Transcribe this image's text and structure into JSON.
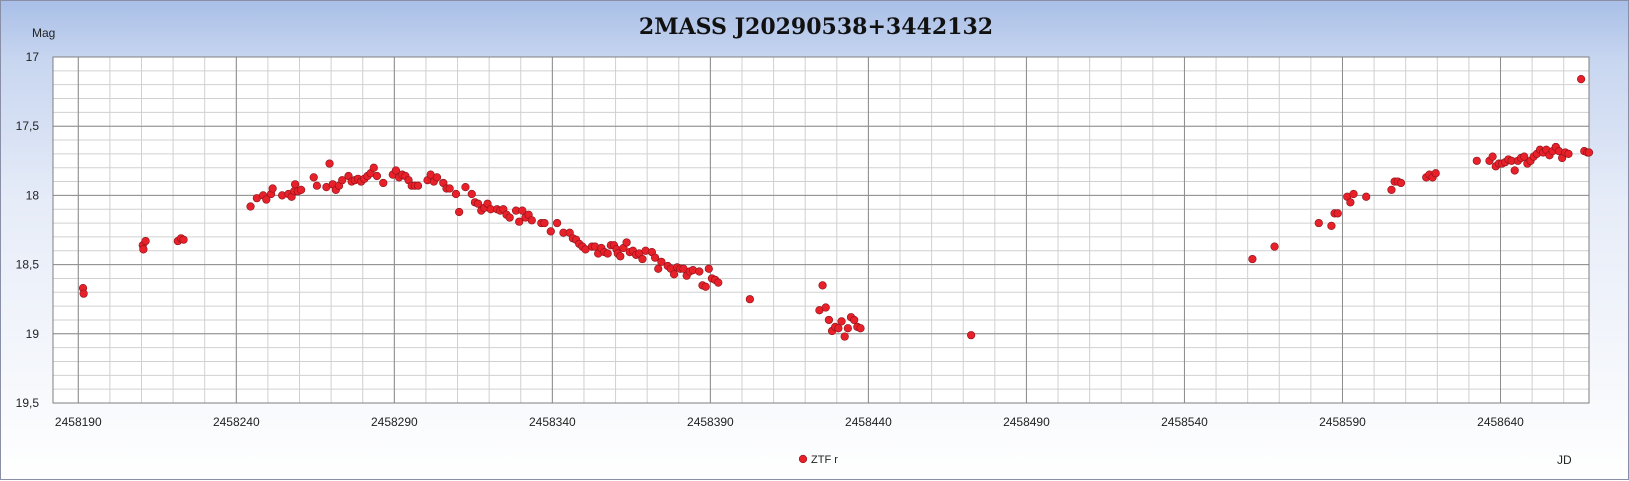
{
  "chart_data": {
    "type": "scatter",
    "title": "2MASS J20290538+3442132",
    "ylabel": "Mag",
    "xlabel": "JD",
    "x_range": [
      2458182,
      2458668
    ],
    "y_range": [
      17,
      19.5
    ],
    "y_inverted": true,
    "x_ticks": [
      2458190,
      2458240,
      2458290,
      2458340,
      2458390,
      2458440,
      2458490,
      2458540,
      2458590,
      2458640
    ],
    "x_tick_labels": [
      "2458190",
      "2458240",
      "2458290",
      "2458340",
      "2458390",
      "2458440",
      "2458490",
      "2458540",
      "2458590",
      "2458640"
    ],
    "y_ticks": [
      17,
      17.5,
      18,
      18.5,
      19,
      19.5
    ],
    "y_tick_labels": [
      "17",
      "17,5",
      "18",
      "18,5",
      "19",
      "19,5"
    ],
    "grid": true,
    "legend_position": "bottom-center",
    "series": [
      {
        "name": "ZTF r",
        "color": "#e8202a",
        "points": [
          [
            2458191.5,
            18.67
          ],
          [
            2458191.7,
            18.71
          ],
          [
            2458210.4,
            18.36
          ],
          [
            2458210.6,
            18.39
          ],
          [
            2458211.3,
            18.33
          ],
          [
            2458221.5,
            18.33
          ],
          [
            2458222.5,
            18.31
          ],
          [
            2458223.3,
            18.32
          ],
          [
            2458244.5,
            18.08
          ],
          [
            2458246.5,
            18.02
          ],
          [
            2458248.5,
            18.0
          ],
          [
            2458249.5,
            18.03
          ],
          [
            2458251,
            17.99
          ],
          [
            2458251.5,
            17.95
          ],
          [
            2458254.5,
            18.0
          ],
          [
            2458256.5,
            17.99
          ],
          [
            2458257.5,
            18.01
          ],
          [
            2458258.3,
            17.97
          ],
          [
            2458258.6,
            17.92
          ],
          [
            2458259.5,
            17.97
          ],
          [
            2458260.5,
            17.96
          ],
          [
            2458264.5,
            17.87
          ],
          [
            2458265.5,
            17.93
          ],
          [
            2458268.5,
            17.94
          ],
          [
            2458269.5,
            17.77
          ],
          [
            2458270.5,
            17.92
          ],
          [
            2458271.5,
            17.96
          ],
          [
            2458272.5,
            17.93
          ],
          [
            2458273.5,
            17.89
          ],
          [
            2458275.5,
            17.86
          ],
          [
            2458276.5,
            17.9
          ],
          [
            2458277.5,
            17.89
          ],
          [
            2458278.5,
            17.88
          ],
          [
            2458279.5,
            17.9
          ],
          [
            2458280.5,
            17.88
          ],
          [
            2458281.5,
            17.86
          ],
          [
            2458282.5,
            17.84
          ],
          [
            2458283.5,
            17.8
          ],
          [
            2458284.5,
            17.86
          ],
          [
            2458286.5,
            17.91
          ],
          [
            2458289.5,
            17.85
          ],
          [
            2458290.5,
            17.82
          ],
          [
            2458291.5,
            17.87
          ],
          [
            2458292.5,
            17.85
          ],
          [
            2458293.5,
            17.86
          ],
          [
            2458294.5,
            17.89
          ],
          [
            2458295.5,
            17.93
          ],
          [
            2458296.5,
            17.93
          ],
          [
            2458297.5,
            17.93
          ],
          [
            2458300.5,
            17.89
          ],
          [
            2458301.5,
            17.85
          ],
          [
            2458302.5,
            17.9
          ],
          [
            2458303.5,
            17.87
          ],
          [
            2458305.5,
            17.91
          ],
          [
            2458306.5,
            17.95
          ],
          [
            2458307.5,
            17.95
          ],
          [
            2458309.5,
            17.99
          ],
          [
            2458310.5,
            18.12
          ],
          [
            2458312.5,
            17.94
          ],
          [
            2458314.5,
            17.99
          ],
          [
            2458315.5,
            18.05
          ],
          [
            2458316.5,
            18.06
          ],
          [
            2458317.5,
            18.11
          ],
          [
            2458318.5,
            18.09
          ],
          [
            2458319.5,
            18.06
          ],
          [
            2458320.5,
            18.1
          ],
          [
            2458322.5,
            18.1
          ],
          [
            2458323.5,
            18.11
          ],
          [
            2458324.5,
            18.1
          ],
          [
            2458325.5,
            18.14
          ],
          [
            2458326.5,
            18.16
          ],
          [
            2458328.5,
            18.11
          ],
          [
            2458329.5,
            18.19
          ],
          [
            2458330.5,
            18.11
          ],
          [
            2458331.5,
            18.16
          ],
          [
            2458332.5,
            18.14
          ],
          [
            2458333.5,
            18.18
          ],
          [
            2458336.5,
            18.2
          ],
          [
            2458337.5,
            18.2
          ],
          [
            2458339.5,
            18.26
          ],
          [
            2458341.5,
            18.2
          ],
          [
            2458343.5,
            18.27
          ],
          [
            2458345.5,
            18.27
          ],
          [
            2458346.5,
            18.31
          ],
          [
            2458347.5,
            18.32
          ],
          [
            2458348.5,
            18.35
          ],
          [
            2458349.5,
            18.37
          ],
          [
            2458350.5,
            18.39
          ],
          [
            2458352.5,
            18.37
          ],
          [
            2458353.5,
            18.37
          ],
          [
            2458354.5,
            18.42
          ],
          [
            2458355.5,
            18.38
          ],
          [
            2458356.5,
            18.41
          ],
          [
            2458357.5,
            18.42
          ],
          [
            2458358.5,
            18.36
          ],
          [
            2458359.5,
            18.36
          ],
          [
            2458360.3,
            18.39
          ],
          [
            2458360.7,
            18.42
          ],
          [
            2458361.5,
            18.44
          ],
          [
            2458362.5,
            18.38
          ],
          [
            2458363.5,
            18.34
          ],
          [
            2458364.5,
            18.41
          ],
          [
            2458365.5,
            18.4
          ],
          [
            2458366.5,
            18.43
          ],
          [
            2458367.5,
            18.42
          ],
          [
            2458368.5,
            18.46
          ],
          [
            2458369.5,
            18.4
          ],
          [
            2458371.5,
            18.41
          ],
          [
            2458372.5,
            18.45
          ],
          [
            2458373.5,
            18.53
          ],
          [
            2458374.5,
            18.48
          ],
          [
            2458376.5,
            18.51
          ],
          [
            2458377.5,
            18.53
          ],
          [
            2458378.5,
            18.57
          ],
          [
            2458379.5,
            18.52
          ],
          [
            2458380.5,
            18.53
          ],
          [
            2458381.5,
            18.53
          ],
          [
            2458382.5,
            18.58
          ],
          [
            2458383.5,
            18.55
          ],
          [
            2458384.5,
            18.54
          ],
          [
            2458386.5,
            18.55
          ],
          [
            2458387.5,
            18.65
          ],
          [
            2458388.5,
            18.66
          ],
          [
            2458389.5,
            18.53
          ],
          [
            2458390.5,
            18.6
          ],
          [
            2458391.5,
            18.61
          ],
          [
            2458392.5,
            18.63
          ],
          [
            2458402.5,
            18.75
          ],
          [
            2458424.5,
            18.83
          ],
          [
            2458425.5,
            18.65
          ],
          [
            2458426.5,
            18.81
          ],
          [
            2458427.5,
            18.9
          ],
          [
            2458428.5,
            18.98
          ],
          [
            2458429.5,
            18.95
          ],
          [
            2458430.5,
            18.96
          ],
          [
            2458431.5,
            18.91
          ],
          [
            2458432.5,
            19.02
          ],
          [
            2458433.5,
            18.96
          ],
          [
            2458434.5,
            18.88
          ],
          [
            2458435.5,
            18.9
          ],
          [
            2458436.5,
            18.95
          ],
          [
            2458437.5,
            18.96
          ],
          [
            2458472.5,
            19.01
          ],
          [
            2458561.5,
            18.46
          ],
          [
            2458568.5,
            18.37
          ],
          [
            2458582.5,
            18.2
          ],
          [
            2458586.5,
            18.22
          ],
          [
            2458587.5,
            18.13
          ],
          [
            2458588.5,
            18.13
          ],
          [
            2458591.5,
            18.01
          ],
          [
            2458592.5,
            18.05
          ],
          [
            2458593.5,
            17.99
          ],
          [
            2458597.5,
            18.01
          ],
          [
            2458605.5,
            17.96
          ],
          [
            2458606.5,
            17.9
          ],
          [
            2458607.5,
            17.9
          ],
          [
            2458608.5,
            17.91
          ],
          [
            2458616.5,
            17.87
          ],
          [
            2458617.5,
            17.85
          ],
          [
            2458618.5,
            17.87
          ],
          [
            2458619.5,
            17.84
          ],
          [
            2458632.5,
            17.75
          ],
          [
            2458636.5,
            17.75
          ],
          [
            2458637.5,
            17.72
          ],
          [
            2458638.5,
            17.79
          ],
          [
            2458639.5,
            17.77
          ],
          [
            2458640.5,
            17.77
          ],
          [
            2458641.5,
            17.76
          ],
          [
            2458642.5,
            17.74
          ],
          [
            2458643.5,
            17.75
          ],
          [
            2458644.5,
            17.82
          ],
          [
            2458645.5,
            17.75
          ],
          [
            2458646.5,
            17.73
          ],
          [
            2458647.5,
            17.72
          ],
          [
            2458648.5,
            17.77
          ],
          [
            2458649.5,
            17.75
          ],
          [
            2458650.5,
            17.72
          ],
          [
            2458651.5,
            17.7
          ],
          [
            2458652.5,
            17.67
          ],
          [
            2458653.5,
            17.69
          ],
          [
            2458654.5,
            17.67
          ],
          [
            2458655.5,
            17.71
          ],
          [
            2458656.5,
            17.68
          ],
          [
            2458657.5,
            17.65
          ],
          [
            2458658.5,
            17.68
          ],
          [
            2458659.5,
            17.73
          ],
          [
            2458660.5,
            17.69
          ],
          [
            2458661.5,
            17.7
          ],
          [
            2458665.5,
            17.16
          ],
          [
            2458666.5,
            17.68
          ],
          [
            2458667.5,
            17.69
          ],
          [
            2458668,
            17.69
          ]
        ]
      }
    ]
  }
}
